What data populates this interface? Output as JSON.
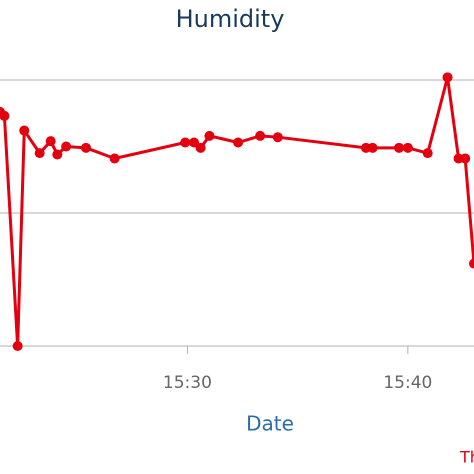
{
  "chart_data": {
    "type": "line",
    "title": "Humidity",
    "x_label": "Date",
    "legend_text": "Th",
    "x": [
      921.5,
      921.7,
      922.3,
      922.6,
      923.3,
      923.8,
      924.1,
      924.5,
      925.4,
      926.7,
      929.9,
      930.3,
      930.6,
      931.0,
      932.3,
      933.3,
      934.1,
      938.1,
      938.4,
      939.6,
      940.0,
      940.9,
      941.8,
      942.3,
      942.6,
      943.0
    ],
    "series": [
      {
        "color": "#e3000f",
        "values": [
          1.76,
          1.73,
          0.0,
          1.62,
          1.45,
          1.54,
          1.44,
          1.5,
          1.49,
          1.41,
          1.53,
          1.53,
          1.49,
          1.58,
          1.53,
          1.58,
          1.57,
          1.49,
          1.49,
          1.49,
          1.49,
          1.45,
          2.02,
          1.41,
          1.41,
          0.62
        ]
      }
    ],
    "xlim": [
      921.5,
      943.0
    ],
    "xticks": [
      {
        "value": 930,
        "label": "15:30"
      },
      {
        "value": 940,
        "label": "15:40"
      }
    ],
    "ylim": [
      0,
      2
    ],
    "yticks": [
      0,
      1,
      2
    ],
    "grid": true
  }
}
